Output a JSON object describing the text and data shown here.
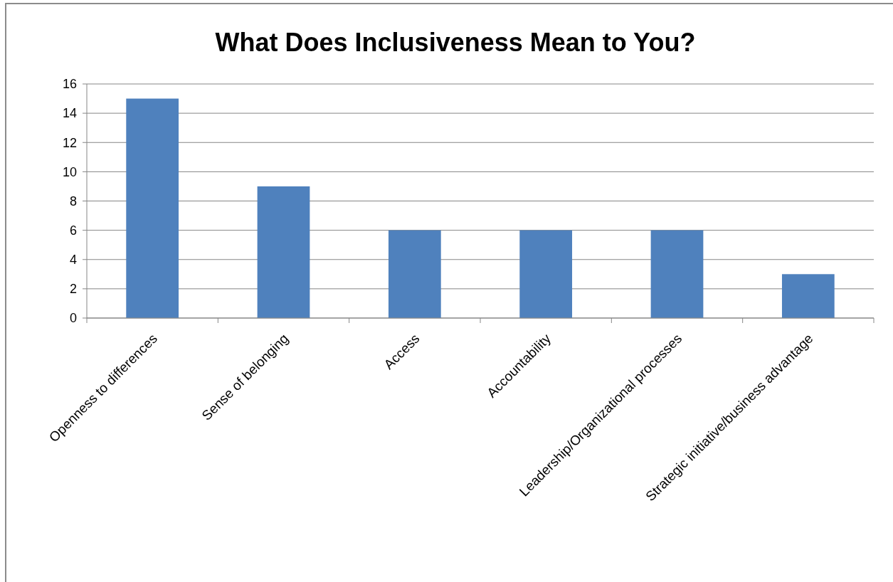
{
  "chart_data": {
    "type": "bar",
    "title": "What Does Inclusiveness Mean to You?",
    "categories": [
      "Openness to differences",
      "Sense of belonging",
      "Access",
      "Accountability",
      "Leadership/Organizational processes",
      "Strategic initiative/business advantage"
    ],
    "values": [
      15,
      9,
      6,
      6,
      6,
      3
    ],
    "color": "#4f81bd",
    "ylim": [
      0,
      16
    ],
    "yticks": [
      0,
      2,
      4,
      6,
      8,
      10,
      12,
      14,
      16
    ],
    "grid": "y"
  }
}
